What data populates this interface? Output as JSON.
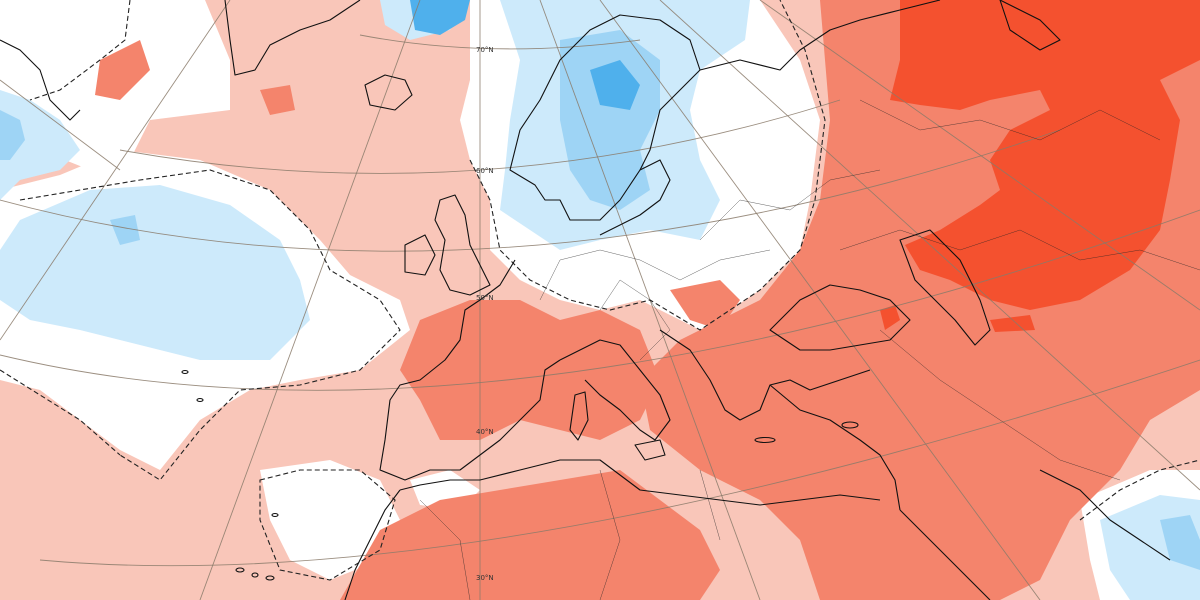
{
  "map": {
    "latitude_labels": [
      "70°N",
      "60°N",
      "50°N",
      "40°N",
      "30°N"
    ],
    "legend": {
      "colors": {
        "strong_warm": "#f4512f",
        "warm": "#f4846c",
        "mild_warm": "#f9c6b9",
        "neutral": "#ffffff",
        "mild_cool": "#cdeafb",
        "cool": "#9ed4f5",
        "strong_cool": "#4fb0ec"
      }
    }
  }
}
